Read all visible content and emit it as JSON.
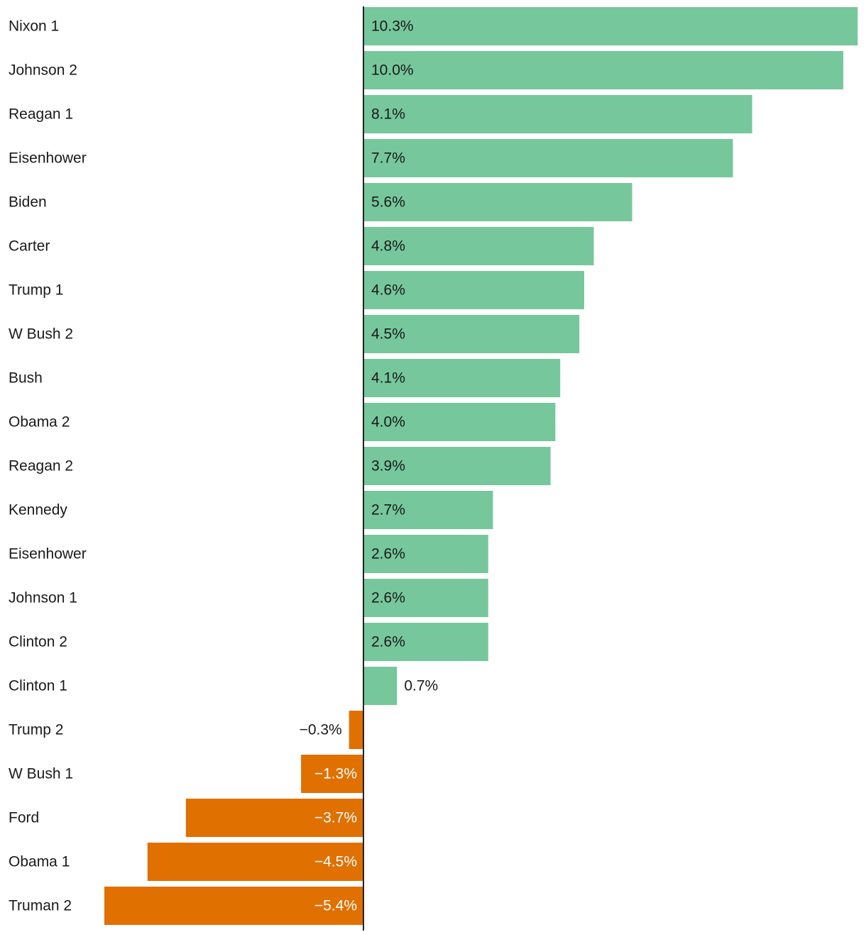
{
  "chart_data": {
    "type": "bar",
    "orientation": "horizontal",
    "title": "",
    "xlabel": "",
    "ylabel": "",
    "value_suffix": "%",
    "categories": [
      "Nixon 1",
      "Johnson 2",
      "Reagan 1",
      "Eisenhower",
      "Biden",
      "Carter",
      "Trump 1",
      "W Bush 2",
      "Bush",
      "Obama 2",
      "Reagan 2",
      "Kennedy",
      "Eisenhower",
      "Johnson 1",
      "Clinton 2",
      "Clinton 1",
      "Trump 2",
      "W Bush 1",
      "Ford",
      "Obama 1",
      "Truman 2"
    ],
    "values": [
      10.3,
      10.0,
      8.1,
      7.7,
      5.6,
      4.8,
      4.6,
      4.5,
      4.1,
      4.0,
      3.9,
      2.7,
      2.6,
      2.6,
      2.6,
      0.7,
      -0.3,
      -1.3,
      -3.7,
      -4.5,
      -5.4
    ],
    "value_labels": [
      "10.3%",
      "10.0%",
      "8.1%",
      "7.7%",
      "5.6%",
      "4.8%",
      "4.6%",
      "4.5%",
      "4.1%",
      "4.0%",
      "3.9%",
      "2.7%",
      "2.6%",
      "2.6%",
      "2.6%",
      "0.7%",
      "−0.3%",
      "−1.3%",
      "−3.7%",
      "−4.5%",
      "−5.4%"
    ],
    "xlim": [
      -5.4,
      10.3
    ],
    "grid": false,
    "colors": {
      "positive": "#76c79c",
      "negative": "#e07000",
      "axis": "#222222",
      "label_dark": "#1a1a1a",
      "label_light": "#ffffff"
    }
  }
}
